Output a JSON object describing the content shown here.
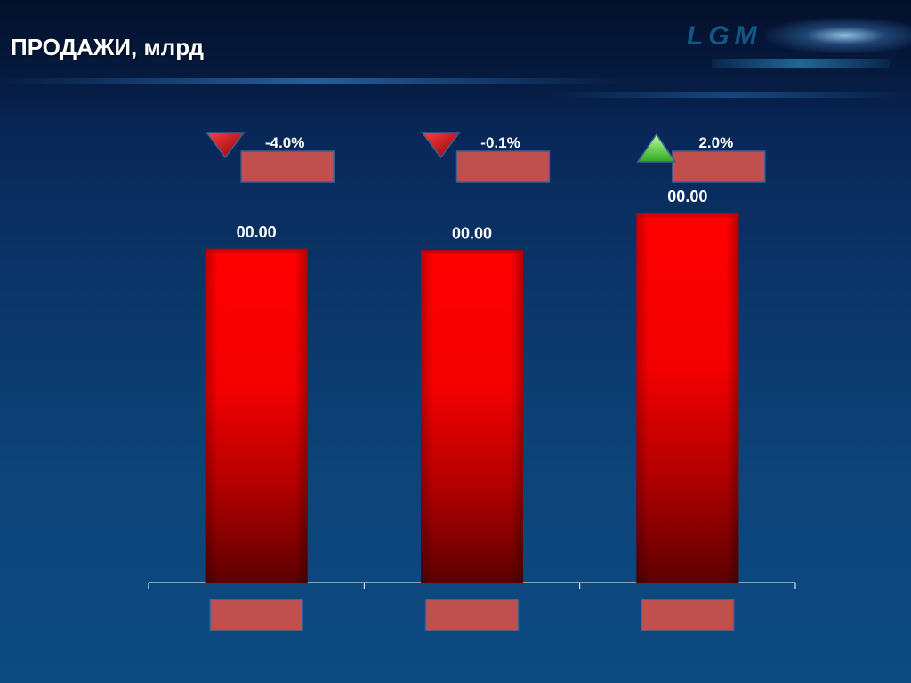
{
  "title": "ПРОДАЖИ, млрд",
  "chart_data": {
    "type": "bar",
    "categories": [
      "",
      "",
      ""
    ],
    "values": [
      1.0,
      0.996,
      1.106
    ],
    "value_labels": [
      "00.00",
      "00.00",
      "00.00"
    ],
    "changes": [
      {
        "label": "-4.0%",
        "direction": "down"
      },
      {
        "label": "-0.1%",
        "direction": "down"
      },
      {
        "label": "2.0%",
        "direction": "up"
      }
    ],
    "ylim": [
      0,
      1.106
    ],
    "grid": false,
    "bar_color": "#ff0000",
    "placeholder_color": "#c0504d",
    "down_color": "#c0141c",
    "up_color": "#4cd43a"
  }
}
